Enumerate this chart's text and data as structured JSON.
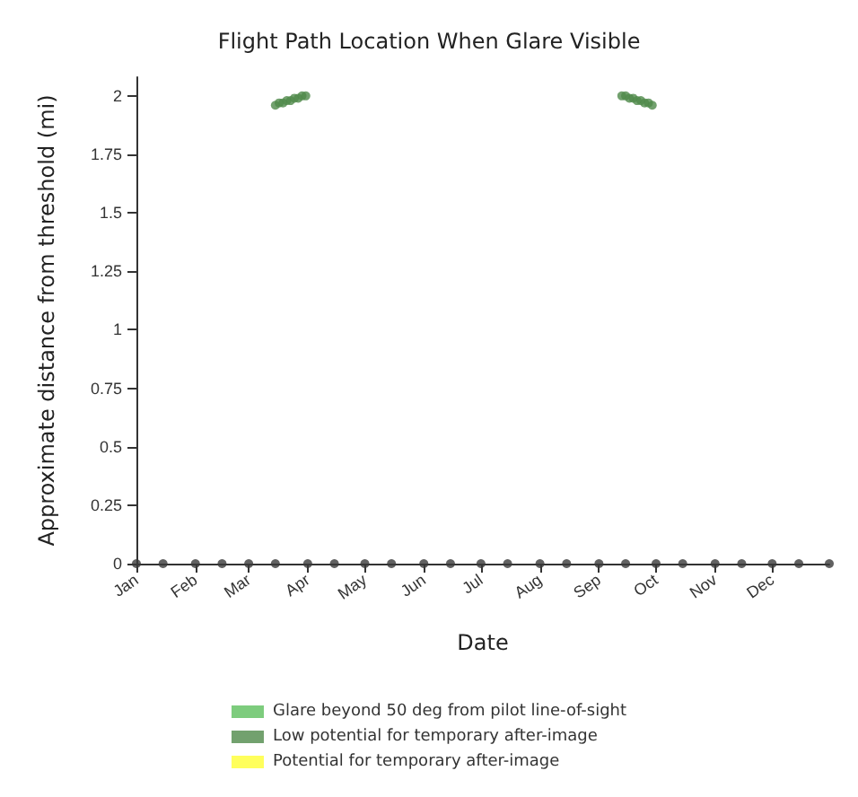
{
  "chart_data": {
    "type": "scatter",
    "title": "Flight Path Location When Glare Visible",
    "xlabel": "Date",
    "ylabel": "Approximate distance from threshold (mi)",
    "xlim": [
      "--01-01",
      "--12-31"
    ],
    "xticks": [
      {
        "value": "--01-01",
        "label": "Jan"
      },
      {
        "value": "--02-01",
        "label": "Feb"
      },
      {
        "value": "--03-01",
        "label": "Mar"
      },
      {
        "value": "--04-01",
        "label": "Apr"
      },
      {
        "value": "--05-01",
        "label": "May"
      },
      {
        "value": "--06-01",
        "label": "Jun"
      },
      {
        "value": "--07-01",
        "label": "Jul"
      },
      {
        "value": "--08-01",
        "label": "Aug"
      },
      {
        "value": "--09-01",
        "label": "Sep"
      },
      {
        "value": "--10-01",
        "label": "Oct"
      },
      {
        "value": "--11-01",
        "label": "Nov"
      },
      {
        "value": "--12-01",
        "label": "Dec"
      }
    ],
    "ylim": [
      0,
      2.08
    ],
    "yticks": [
      0,
      {
        "value": 0.25,
        "label": "0.25"
      },
      {
        "value": 0.5,
        "label": "0.5"
      },
      {
        "value": 0.75,
        "label": "0.75"
      },
      1,
      {
        "value": 1.25,
        "label": "1.25"
      },
      {
        "value": 1.5,
        "label": "1.5"
      },
      {
        "value": 1.75,
        "label": "1.75"
      },
      2
    ],
    "grid": false,
    "legend": "bottom",
    "marker": "circle",
    "series": [
      {
        "name": "Glare beyond 50 deg from pilot line-of-sight",
        "color": "#5cbf5c"
      },
      {
        "name": "Low potential for temporary after-image",
        "color": "#4f8a4a",
        "x": [
          "--03-15",
          "--03-17",
          "--03-19",
          "--03-21",
          "--03-23",
          "--03-25",
          "--03-27",
          "--03-29",
          "--03-31",
          "--09-13",
          "--09-15",
          "--09-17",
          "--09-19",
          "--09-21",
          "--09-23",
          "--09-25",
          "--09-27",
          "--09-29"
        ],
        "values": [
          1.96,
          1.97,
          1.97,
          1.98,
          1.98,
          1.99,
          1.99,
          2.0,
          2.0,
          2.0,
          2.0,
          1.99,
          1.99,
          1.98,
          1.98,
          1.97,
          1.97,
          1.96
        ]
      },
      {
        "name": "Potential for temporary after-image",
        "color": "#ffff33"
      },
      {
        "color": "#3a3a3a",
        "x": [
          "--01-01",
          "--01-15",
          "--02-01",
          "--02-15",
          "--03-01",
          "--03-15",
          "--04-01",
          "--04-15",
          "--05-01",
          "--05-15",
          "--06-01",
          "--06-15",
          "--07-01",
          "--07-15",
          "--08-01",
          "--08-15",
          "--09-01",
          "--09-15",
          "--10-01",
          "--10-15",
          "--11-01",
          "--11-15",
          "--12-01",
          "--12-15",
          "--12-31"
        ],
        "values": [
          0,
          0,
          0,
          0,
          0,
          0,
          0,
          0,
          0,
          0,
          0,
          0,
          0,
          0,
          0,
          0,
          0,
          0,
          0,
          0,
          0,
          0,
          0,
          0,
          0
        ]
      }
    ]
  }
}
